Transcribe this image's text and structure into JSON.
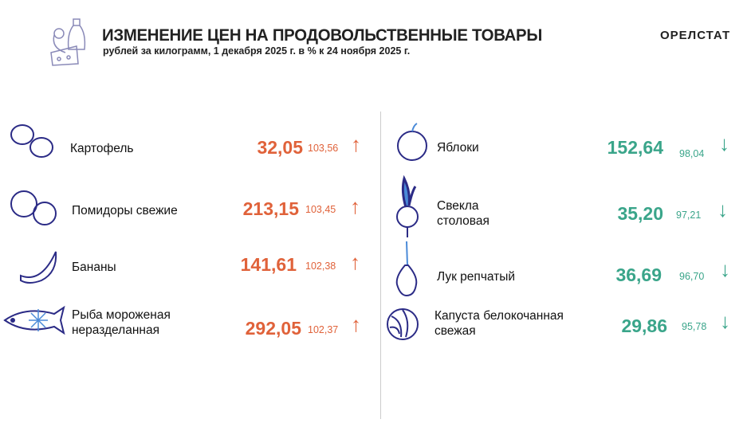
{
  "header": {
    "title": "ИЗМЕНЕНИЕ ЦЕН НА ПРОДОВОЛЬСТВЕННЫЕ ТОВАРЫ",
    "subtitle": "рублей за килограмм,  1 декабря 2025 г. в % к 24 ноября 2025 г.",
    "brand": "ОРЕЛСТАТ"
  },
  "colors": {
    "increase": "#e0623a",
    "decrease": "#3aa58a",
    "icon": "#2b2b86"
  },
  "left_items": [
    {
      "label": "Картофель",
      "price": "32,05",
      "index": "103,56",
      "trend": "up",
      "icon": "potato-icon"
    },
    {
      "label": "Помидоры свежие",
      "price": "213,15",
      "index": "103,45",
      "trend": "up",
      "icon": "tomato-icon"
    },
    {
      "label": "Бананы",
      "price": "141,61",
      "index": "102,38",
      "trend": "up",
      "icon": "banana-icon"
    },
    {
      "label": "Рыба мороженая неразделанная",
      "price": "292,05",
      "index": "102,37",
      "trend": "up",
      "icon": "frozen-fish-icon"
    }
  ],
  "right_items": [
    {
      "label": "Яблоки",
      "price": "152,64",
      "index": "98,04",
      "trend": "down",
      "icon": "apple-icon"
    },
    {
      "label": "Свекла столовая",
      "price": "35,20",
      "index": "97,21",
      "trend": "down",
      "icon": "beet-icon"
    },
    {
      "label": "Лук репчатый",
      "price": "36,69",
      "index": "96,70",
      "trend": "down",
      "icon": "onion-icon"
    },
    {
      "label": "Капуста белокочанная свежая",
      "price": "29,86",
      "index": "95,78",
      "trend": "down",
      "icon": "cabbage-icon"
    }
  ],
  "arrows": {
    "up": "↑",
    "down": "↓"
  }
}
